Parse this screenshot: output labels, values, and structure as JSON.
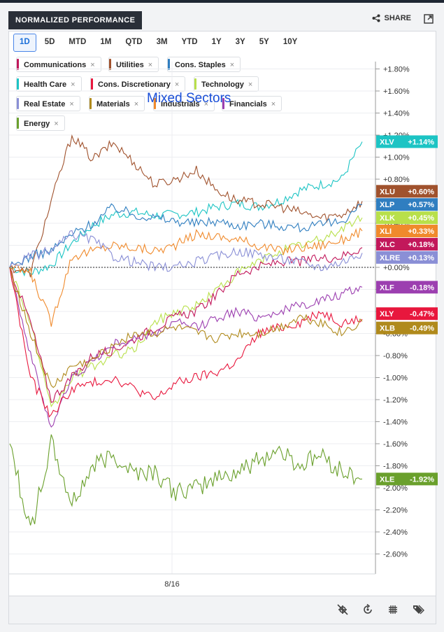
{
  "header": {
    "title": "NORMALIZED PERFORMANCE",
    "share_label": "SHARE",
    "share_icon": "share-icon",
    "expand_icon": "expand-icon"
  },
  "tabs": [
    "1D",
    "5D",
    "MTD",
    "1M",
    "QTD",
    "3M",
    "YTD",
    "1Y",
    "3Y",
    "5Y",
    "10Y"
  ],
  "active_tab": "1D",
  "legend": [
    {
      "label": "Communications",
      "color": "#c2185b"
    },
    {
      "label": "Utilities",
      "color": "#a0522d"
    },
    {
      "label": "Cons. Staples",
      "color": "#2f7ec0"
    },
    {
      "label": "Health Care",
      "color": "#1cc4c4"
    },
    {
      "label": "Cons. Discretionary",
      "color": "#e8173d"
    },
    {
      "label": "Technology",
      "color": "#b8e04a"
    },
    {
      "label": "Real Estate",
      "color": "#8a8fd6"
    },
    {
      "label": "Materials",
      "color": "#b08a1c"
    },
    {
      "label": "Industrials",
      "color": "#f08a2c"
    },
    {
      "label": "Financials",
      "color": "#9c3fb0"
    },
    {
      "label": "Energy",
      "color": "#6aa02c"
    }
  ],
  "footer_icons": [
    "crosshair-off-icon",
    "replay-icon",
    "grid-icon",
    "tags-icon"
  ],
  "chart_data": {
    "type": "line",
    "title": "Mixed Sectors",
    "x_tick_label": "8/16",
    "ylim": [
      -2.75,
      1.95
    ],
    "y_ticks": [
      "+1.80%",
      "+1.60%",
      "+1.40%",
      "+1.20%",
      "+1.00%",
      "+0.80%",
      "+0.60%",
      "+0.40%",
      "+0.20%",
      "+0.00%",
      "-0.20%",
      "-0.40%",
      "-0.60%",
      "-0.80%",
      "-1.00%",
      "-1.20%",
      "-1.40%",
      "-1.60%",
      "-1.80%",
      "-2.00%",
      "-2.20%",
      "-2.40%",
      "-2.60%"
    ],
    "y_tick_values": [
      1.8,
      1.6,
      1.4,
      1.2,
      1.0,
      0.8,
      0.6,
      0.4,
      0.2,
      0.0,
      -0.2,
      -0.4,
      -0.6,
      -0.8,
      -1.0,
      -1.2,
      -1.4,
      -1.6,
      -1.8,
      -2.0,
      -2.2,
      -2.4,
      -2.6
    ],
    "grid": true,
    "series": [
      {
        "name": "Health Care",
        "ticker": "XLV",
        "change": "+1.14%",
        "final": 1.14,
        "color": "#1cc4c4",
        "values": [
          0.0,
          -0.05,
          0.02,
          0.22,
          0.38,
          0.48,
          0.5,
          0.47,
          0.48,
          0.5,
          0.55,
          0.58,
          0.55,
          0.6,
          0.7,
          0.75,
          0.8,
          1.14
        ]
      },
      {
        "name": "Utilities",
        "ticker": "XLU",
        "change": "+0.60%",
        "final": 0.6,
        "color": "#a0522d",
        "values": [
          0.0,
          -0.05,
          0.6,
          1.2,
          0.98,
          1.13,
          0.95,
          0.75,
          0.8,
          0.88,
          0.7,
          0.6,
          0.58,
          0.55,
          0.5,
          0.45,
          0.48,
          0.6
        ]
      },
      {
        "name": "Cons. Staples",
        "ticker": "XLP",
        "change": "+0.57%",
        "final": 0.57,
        "color": "#2f7ec0",
        "values": [
          0.0,
          0.1,
          0.15,
          0.3,
          0.4,
          0.55,
          0.48,
          0.45,
          0.42,
          0.4,
          0.42,
          0.38,
          0.4,
          0.38,
          0.36,
          0.38,
          0.42,
          0.57
        ]
      },
      {
        "name": "Technology",
        "ticker": "XLK",
        "change": "+0.45%",
        "final": 0.45,
        "color": "#b8e04a",
        "values": [
          0.0,
          -0.5,
          -1.3,
          -1.0,
          -0.9,
          -0.8,
          -0.75,
          -0.5,
          -0.4,
          -0.35,
          -0.2,
          -0.05,
          0.05,
          0.15,
          0.2,
          0.25,
          0.35,
          0.45
        ]
      },
      {
        "name": "Industrials",
        "ticker": "XLI",
        "change": "+0.33%",
        "final": 0.33,
        "color": "#f08a2c",
        "values": [
          0.0,
          -0.05,
          -0.5,
          0.1,
          0.15,
          0.2,
          0.18,
          0.15,
          0.2,
          0.3,
          0.28,
          0.25,
          0.2,
          0.15,
          0.18,
          0.2,
          0.25,
          0.33
        ]
      },
      {
        "name": "Communications",
        "ticker": "XLC",
        "change": "+0.18%",
        "final": 0.18,
        "color": "#c2185b",
        "values": [
          0.0,
          -0.5,
          -1.2,
          -1.0,
          -0.8,
          -0.75,
          -0.65,
          -0.55,
          -0.45,
          -0.4,
          -0.25,
          -0.05,
          0.0,
          0.05,
          0.05,
          0.08,
          0.1,
          0.18
        ]
      },
      {
        "name": "Real Estate",
        "ticker": "XLRE",
        "change": "+0.13%",
        "final": 0.13,
        "color": "#8a8fd6",
        "values": [
          0.0,
          0.1,
          0.15,
          0.3,
          0.25,
          0.1,
          0.05,
          0.0,
          0.0,
          0.05,
          0.1,
          0.15,
          0.12,
          0.08,
          0.05,
          0.0,
          0.05,
          0.13
        ]
      },
      {
        "name": "Financials",
        "ticker": "XLF",
        "change": "-0.18%",
        "final": -0.18,
        "color": "#9c3fb0",
        "values": [
          0.0,
          -0.8,
          -1.45,
          -1.0,
          -0.85,
          -0.7,
          -0.65,
          -0.6,
          -0.5,
          -0.55,
          -0.45,
          -0.4,
          -0.45,
          -0.4,
          -0.35,
          -0.3,
          -0.25,
          -0.18
        ]
      },
      {
        "name": "Cons. Discretionary",
        "ticker": "XLY",
        "change": "-0.47%",
        "final": -0.47,
        "color": "#e8173d",
        "values": [
          0.0,
          -1.0,
          -1.35,
          -1.1,
          -1.05,
          -1.0,
          -1.1,
          -1.2,
          -1.05,
          -1.0,
          -0.95,
          -0.85,
          -0.6,
          -0.55,
          -0.5,
          -0.4,
          -0.5,
          -0.47
        ]
      },
      {
        "name": "Materials",
        "ticker": "XLB",
        "change": "-0.49%",
        "final": -0.49,
        "color": "#b08a1c",
        "values": [
          0.0,
          -0.6,
          -1.1,
          -0.9,
          -0.85,
          -0.7,
          -0.6,
          -0.6,
          -0.55,
          -0.6,
          -0.65,
          -0.6,
          -0.6,
          -0.55,
          -0.45,
          -0.5,
          -0.6,
          -0.49
        ]
      },
      {
        "name": "Energy",
        "ticker": "XLE",
        "change": "-1.92%",
        "final": -1.92,
        "color": "#6aa02c",
        "values": [
          -1.6,
          -2.4,
          -1.6,
          -2.15,
          -1.8,
          -1.7,
          -1.85,
          -1.85,
          -2.05,
          -2.0,
          -1.9,
          -1.85,
          -1.75,
          -1.65,
          -1.8,
          -1.7,
          -1.85,
          -1.92
        ]
      }
    ],
    "end_labels": [
      {
        "ticker": "XLV",
        "change": "+1.14%",
        "color": "#1cc4c4",
        "at": 1.14
      },
      {
        "ticker": "XLU",
        "change": "+0.60%",
        "color": "#a0522d",
        "at": 0.69
      },
      {
        "ticker": "XLP",
        "change": "+0.57%",
        "color": "#2f7ec0",
        "at": 0.57
      },
      {
        "ticker": "XLK",
        "change": "+0.45%",
        "color": "#b8e04a",
        "at": 0.45
      },
      {
        "ticker": "XLI",
        "change": "+0.33%",
        "color": "#f08a2c",
        "at": 0.33
      },
      {
        "ticker": "XLC",
        "change": "+0.18%",
        "color": "#c2185b",
        "at": 0.21
      },
      {
        "ticker": "XLRE",
        "change": "+0.13%",
        "color": "#8a8fd6",
        "at": 0.09
      },
      {
        "ticker": "XLF",
        "change": "-0.18%",
        "color": "#9c3fb0",
        "at": -0.18
      },
      {
        "ticker": "XLY",
        "change": "-0.47%",
        "color": "#e8173d",
        "at": -0.42
      },
      {
        "ticker": "XLB",
        "change": "-0.49%",
        "color": "#b08a1c",
        "at": -0.55
      },
      {
        "ticker": "XLE",
        "change": "-1.92%",
        "color": "#6aa02c",
        "at": -1.92
      }
    ]
  }
}
